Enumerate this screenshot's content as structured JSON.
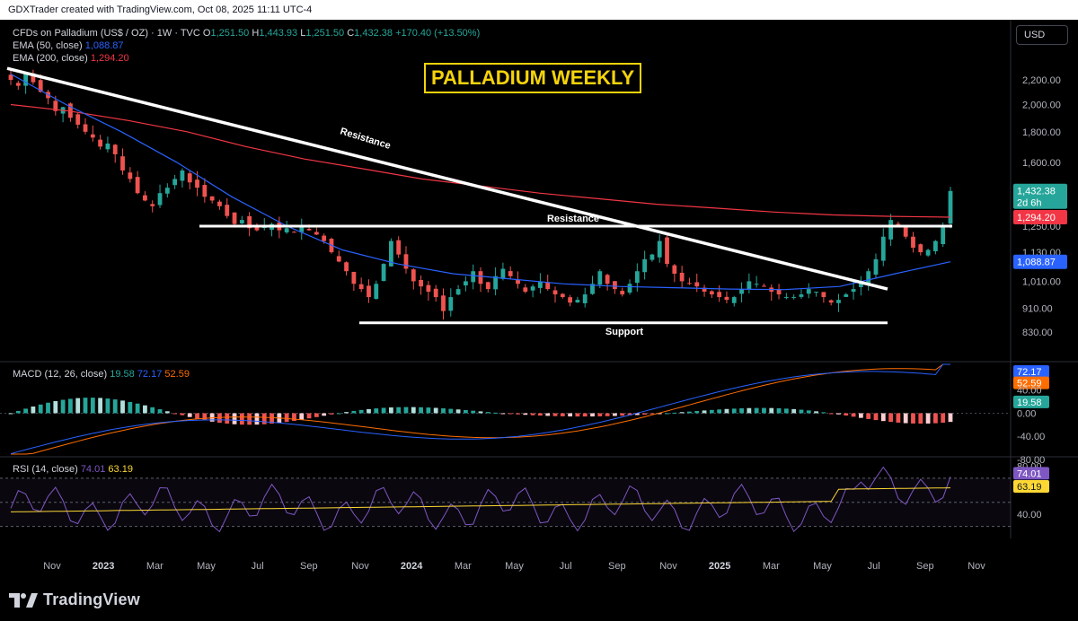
{
  "header": {
    "credit": "GDXTrader created with TradingView.com, Oct 08, 2025 11:11 UTC-4"
  },
  "currency": "USD",
  "colors": {
    "up": "#26a69a",
    "down": "#ef5350",
    "ema50": "#2962ff",
    "ema200": "#f23645",
    "macd": "#2962ff",
    "signal": "#ff6d00",
    "rsi": "#7e57c2",
    "rsi_ma": "#fdd835",
    "title": "#f5d30b"
  },
  "legend": {
    "symbol": "CFDs on Palladium (US$ / OZ) · 1W · TVC",
    "o_label": "O",
    "o": "1,251.50",
    "h_label": "H",
    "h": "1,443.93",
    "l_label": "L",
    "l": "1,251.50",
    "c_label": "C",
    "c": "1,432.38",
    "change": "+170.40 (+13.50%)",
    "ema50_label": "EMA (50, close)",
    "ema50_value": "1,088.87",
    "ema200_label": "EMA (200, close)",
    "ema200_value": "1,294.20",
    "macd_label": "MACD (12, 26, close)",
    "macd_hist": "19.58",
    "macd_line": "72.17",
    "macd_signal": "52.59",
    "rsi_label": "RSI (14, close)",
    "rsi_value": "74.01",
    "rsi_ma": "63.19"
  },
  "annotations": {
    "title": "PALLADIUM WEEKLY",
    "resistance_diag": "Resistance",
    "resistance_horiz": "Resistance",
    "support": "Support"
  },
  "chart_data": {
    "type": "candlestick",
    "price_axis_labels": [
      "2,200.00",
      "2,000.00",
      "1,800.00",
      "1,600.00",
      "1,250.00",
      "1,130.00",
      "1,010.00",
      "910.00",
      "830.00"
    ],
    "price_axis_values": [
      2200,
      2000,
      1800,
      1600,
      1250,
      1130,
      1010,
      910,
      830
    ],
    "price_tags": {
      "last": "1,432.38",
      "countdown": "2d 6h",
      "ema200": "1,294.20",
      "ema50": "1,088.87"
    },
    "ylim": [
      780,
      2400
    ],
    "time_axis": [
      "Nov",
      "2023",
      "Mar",
      "May",
      "Jul",
      "Sep",
      "Nov",
      "2024",
      "Mar",
      "May",
      "Jul",
      "Sep",
      "Nov",
      "2025",
      "Mar",
      "May",
      "Jul",
      "Sep",
      "Nov"
    ],
    "closes_weekly": [
      2200,
      2150,
      2250,
      2180,
      2100,
      2050,
      1950,
      1980,
      1900,
      1850,
      1800,
      1760,
      1700,
      1720,
      1650,
      1550,
      1500,
      1420,
      1380,
      1350,
      1420,
      1450,
      1500,
      1550,
      1480,
      1450,
      1400,
      1380,
      1350,
      1300,
      1260,
      1280,
      1240,
      1230,
      1250,
      1260,
      1230,
      1240,
      1220,
      1250,
      1230,
      1210,
      1180,
      1130,
      1090,
      1050,
      1000,
      980,
      950,
      1000,
      1080,
      1180,
      1120,
      1060,
      1010,
      990,
      970,
      950,
      900,
      950,
      980,
      1010,
      1050,
      1000,
      980,
      1030,
      1060,
      1030,
      1000,
      970,
      990,
      1010,
      980,
      960,
      950,
      930,
      940,
      960,
      1000,
      1050,
      1000,
      980,
      960,
      1000,
      1050,
      1100,
      1120,
      1180,
      1080,
      1040,
      1010,
      1000,
      990,
      970,
      960,
      950,
      940,
      950,
      980,
      1010,
      1000,
      990,
      970,
      960,
      950,
      950,
      960,
      980,
      970,
      950,
      930,
      940,
      960,
      980,
      1010,
      1050,
      1100,
      1200,
      1280,
      1260,
      1200,
      1150,
      1130,
      1140,
      1180,
      1250,
      1432
    ],
    "ema50": [
      2250,
      2000,
      1800,
      1600,
      1400,
      1250,
      1140,
      1080,
      1040,
      1020,
      1000,
      990,
      985,
      980,
      978,
      990,
      1040,
      1089
    ],
    "ema200": [
      2000,
      1950,
      1880,
      1800,
      1700,
      1620,
      1560,
      1500,
      1460,
      1420,
      1390,
      1360,
      1340,
      1320,
      1305,
      1298,
      1294
    ],
    "trendline": {
      "from": [
        2300
      ],
      "to": [
        980
      ],
      "label": "Resistance"
    },
    "resistance_level": 1250,
    "support_level": 860,
    "macd": {
      "axis_labels": [
        "72.17",
        "52.59",
        "40.00",
        "19.58",
        "0.00",
        "-40.00",
        "-80.00"
      ],
      "axis_values": [
        72.17,
        52.59,
        40,
        19.58,
        0,
        -40,
        -80
      ],
      "macd_line": 72.17,
      "signal": 52.59,
      "histogram": 19.58
    },
    "rsi": {
      "axis_labels": [
        "80.00",
        "74.01",
        "63.19",
        "40.00"
      ],
      "axis_values": [
        80,
        74.01,
        63.19,
        40
      ],
      "rsi": 74.01,
      "rsi_ma": 63.19,
      "upper_band": 70,
      "lower_band": 30
    }
  },
  "footer": {
    "brand": "TradingView"
  }
}
